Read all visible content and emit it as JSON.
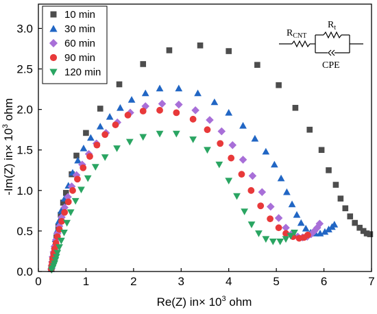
{
  "chart_data": {
    "type": "scatter",
    "title": "",
    "xlabel_main": "Re(Z) in× 10",
    "xlabel_exp": "3",
    "xlabel_unit": " ohm",
    "ylabel_main": "-Im(Z) in× 10",
    "ylabel_exp": "3",
    "ylabel_unit": " ohm",
    "xlim": [
      0,
      7
    ],
    "ylim": [
      0,
      3.3
    ],
    "x_ticks": [
      "0",
      "1",
      "2",
      "3",
      "4",
      "5",
      "6",
      "7"
    ],
    "y_ticks": [
      "0.0",
      "0.5",
      "1.0",
      "1.5",
      "2.0",
      "2.5",
      "3.0"
    ],
    "legend_position": "top-left",
    "circuit": {
      "r_cnt": "R",
      "r_cnt_sub": "CNT",
      "r_t": "R",
      "r_t_sub": "t",
      "cpe": "CPE"
    },
    "series": [
      {
        "name": "10 min",
        "marker": "square",
        "color": "#4d4d4d",
        "points": [
          [
            0.28,
            0.05
          ],
          [
            0.3,
            0.12
          ],
          [
            0.32,
            0.2
          ],
          [
            0.35,
            0.3
          ],
          [
            0.38,
            0.42
          ],
          [
            0.42,
            0.55
          ],
          [
            0.47,
            0.7
          ],
          [
            0.52,
            0.85
          ],
          [
            0.58,
            0.97
          ],
          [
            0.7,
            1.2
          ],
          [
            0.8,
            1.43
          ],
          [
            1.0,
            1.71
          ],
          [
            1.3,
            2.01
          ],
          [
            1.7,
            2.31
          ],
          [
            2.2,
            2.56
          ],
          [
            2.75,
            2.73
          ],
          [
            3.4,
            2.79
          ],
          [
            4.0,
            2.72
          ],
          [
            4.6,
            2.55
          ],
          [
            5.05,
            2.3
          ],
          [
            5.4,
            2.02
          ],
          [
            5.7,
            1.75
          ],
          [
            5.95,
            1.5
          ],
          [
            6.1,
            1.25
          ],
          [
            6.25,
            1.07
          ],
          [
            6.35,
            0.9
          ],
          [
            6.45,
            0.78
          ],
          [
            6.55,
            0.68
          ],
          [
            6.65,
            0.6
          ],
          [
            6.75,
            0.54
          ],
          [
            6.83,
            0.5
          ],
          [
            6.9,
            0.47
          ],
          [
            6.97,
            0.46
          ]
        ]
      },
      {
        "name": "30 min",
        "marker": "triangle-up",
        "color": "#2166c4",
        "points": [
          [
            0.27,
            0.03
          ],
          [
            0.28,
            0.07
          ],
          [
            0.29,
            0.12
          ],
          [
            0.3,
            0.18
          ],
          [
            0.32,
            0.25
          ],
          [
            0.34,
            0.32
          ],
          [
            0.36,
            0.4
          ],
          [
            0.39,
            0.5
          ],
          [
            0.43,
            0.62
          ],
          [
            0.48,
            0.75
          ],
          [
            0.55,
            0.9
          ],
          [
            0.63,
            1.06
          ],
          [
            0.72,
            1.22
          ],
          [
            0.83,
            1.37
          ],
          [
            0.95,
            1.52
          ],
          [
            1.1,
            1.65
          ],
          [
            1.3,
            1.79
          ],
          [
            1.5,
            1.91
          ],
          [
            1.72,
            2.02
          ],
          [
            1.96,
            2.12
          ],
          [
            2.25,
            2.2
          ],
          [
            2.55,
            2.26
          ],
          [
            2.95,
            2.26
          ],
          [
            3.35,
            2.2
          ],
          [
            3.7,
            2.09
          ],
          [
            4.0,
            1.96
          ],
          [
            4.3,
            1.8
          ],
          [
            4.55,
            1.64
          ],
          [
            4.78,
            1.48
          ],
          [
            4.96,
            1.32
          ],
          [
            5.1,
            1.15
          ],
          [
            5.22,
            0.98
          ],
          [
            5.33,
            0.83
          ],
          [
            5.43,
            0.7
          ],
          [
            5.52,
            0.6
          ],
          [
            5.62,
            0.53
          ],
          [
            5.72,
            0.48
          ],
          [
            5.82,
            0.47
          ],
          [
            5.92,
            0.47
          ],
          [
            6.02,
            0.49
          ],
          [
            6.1,
            0.52
          ],
          [
            6.17,
            0.55
          ],
          [
            6.22,
            0.58
          ]
        ]
      },
      {
        "name": "60 min",
        "marker": "diamond",
        "color": "#a86fd8",
        "points": [
          [
            0.27,
            0.03
          ],
          [
            0.28,
            0.07
          ],
          [
            0.29,
            0.12
          ],
          [
            0.3,
            0.18
          ],
          [
            0.32,
            0.24
          ],
          [
            0.34,
            0.31
          ],
          [
            0.37,
            0.39
          ],
          [
            0.4,
            0.47
          ],
          [
            0.44,
            0.56
          ],
          [
            0.49,
            0.67
          ],
          [
            0.55,
            0.79
          ],
          [
            0.62,
            0.92
          ],
          [
            0.7,
            1.05
          ],
          [
            0.8,
            1.19
          ],
          [
            0.92,
            1.32
          ],
          [
            1.06,
            1.45
          ],
          [
            1.22,
            1.58
          ],
          [
            1.42,
            1.71
          ],
          [
            1.66,
            1.84
          ],
          [
            1.93,
            1.96
          ],
          [
            2.25,
            2.04
          ],
          [
            2.6,
            2.07
          ],
          [
            2.95,
            2.06
          ],
          [
            3.3,
            1.99
          ],
          [
            3.6,
            1.87
          ],
          [
            3.85,
            1.73
          ],
          [
            4.08,
            1.56
          ],
          [
            4.3,
            1.38
          ],
          [
            4.5,
            1.18
          ],
          [
            4.7,
            0.98
          ],
          [
            4.88,
            0.8
          ],
          [
            5.05,
            0.66
          ],
          [
            5.2,
            0.54
          ],
          [
            5.33,
            0.47
          ],
          [
            5.45,
            0.43
          ],
          [
            5.55,
            0.42
          ],
          [
            5.65,
            0.43
          ],
          [
            5.73,
            0.46
          ],
          [
            5.8,
            0.5
          ],
          [
            5.86,
            0.54
          ],
          [
            5.91,
            0.59
          ]
        ]
      },
      {
        "name": "90 min",
        "marker": "circle",
        "color": "#e8393a",
        "points": [
          [
            0.27,
            0.03
          ],
          [
            0.28,
            0.07
          ],
          [
            0.29,
            0.11
          ],
          [
            0.3,
            0.16
          ],
          [
            0.32,
            0.22
          ],
          [
            0.34,
            0.28
          ],
          [
            0.37,
            0.35
          ],
          [
            0.4,
            0.43
          ],
          [
            0.44,
            0.52
          ],
          [
            0.49,
            0.62
          ],
          [
            0.55,
            0.73
          ],
          [
            0.63,
            0.86
          ],
          [
            0.72,
            1.0
          ],
          [
            0.82,
            1.14
          ],
          [
            0.94,
            1.28
          ],
          [
            1.08,
            1.42
          ],
          [
            1.23,
            1.56
          ],
          [
            1.4,
            1.69
          ],
          [
            1.62,
            1.81
          ],
          [
            1.88,
            1.93
          ],
          [
            2.2,
            1.98
          ],
          [
            2.55,
            1.99
          ],
          [
            2.9,
            1.96
          ],
          [
            3.25,
            1.88
          ],
          [
            3.55,
            1.75
          ],
          [
            3.82,
            1.58
          ],
          [
            4.05,
            1.4
          ],
          [
            4.27,
            1.2
          ],
          [
            4.47,
            1.0
          ],
          [
            4.67,
            0.81
          ],
          [
            4.87,
            0.65
          ],
          [
            5.05,
            0.54
          ],
          [
            5.2,
            0.47
          ],
          [
            5.35,
            0.43
          ],
          [
            5.48,
            0.41
          ],
          [
            5.58,
            0.42
          ],
          [
            5.66,
            0.45
          ]
        ]
      },
      {
        "name": "120 min",
        "marker": "triangle-down",
        "color": "#2aa562",
        "points": [
          [
            0.28,
            0.02
          ],
          [
            0.3,
            0.04
          ],
          [
            0.32,
            0.07
          ],
          [
            0.34,
            0.1
          ],
          [
            0.36,
            0.14
          ],
          [
            0.38,
            0.18
          ],
          [
            0.4,
            0.23
          ],
          [
            0.44,
            0.3
          ],
          [
            0.48,
            0.38
          ],
          [
            0.54,
            0.48
          ],
          [
            0.6,
            0.6
          ],
          [
            0.68,
            0.73
          ],
          [
            0.78,
            0.87
          ],
          [
            0.9,
            1.01
          ],
          [
            1.04,
            1.15
          ],
          [
            1.2,
            1.29
          ],
          [
            1.4,
            1.41
          ],
          [
            1.65,
            1.52
          ],
          [
            1.92,
            1.6
          ],
          [
            2.2,
            1.66
          ],
          [
            2.55,
            1.7
          ],
          [
            2.9,
            1.7
          ],
          [
            3.25,
            1.63
          ],
          [
            3.55,
            1.5
          ],
          [
            3.8,
            1.32
          ],
          [
            4.0,
            1.12
          ],
          [
            4.17,
            0.93
          ],
          [
            4.33,
            0.74
          ],
          [
            4.48,
            0.58
          ],
          [
            4.63,
            0.47
          ],
          [
            4.78,
            0.4
          ],
          [
            4.93,
            0.37
          ],
          [
            5.08,
            0.37
          ],
          [
            5.2,
            0.4
          ],
          [
            5.3,
            0.44
          ],
          [
            5.38,
            0.48
          ]
        ]
      }
    ]
  }
}
